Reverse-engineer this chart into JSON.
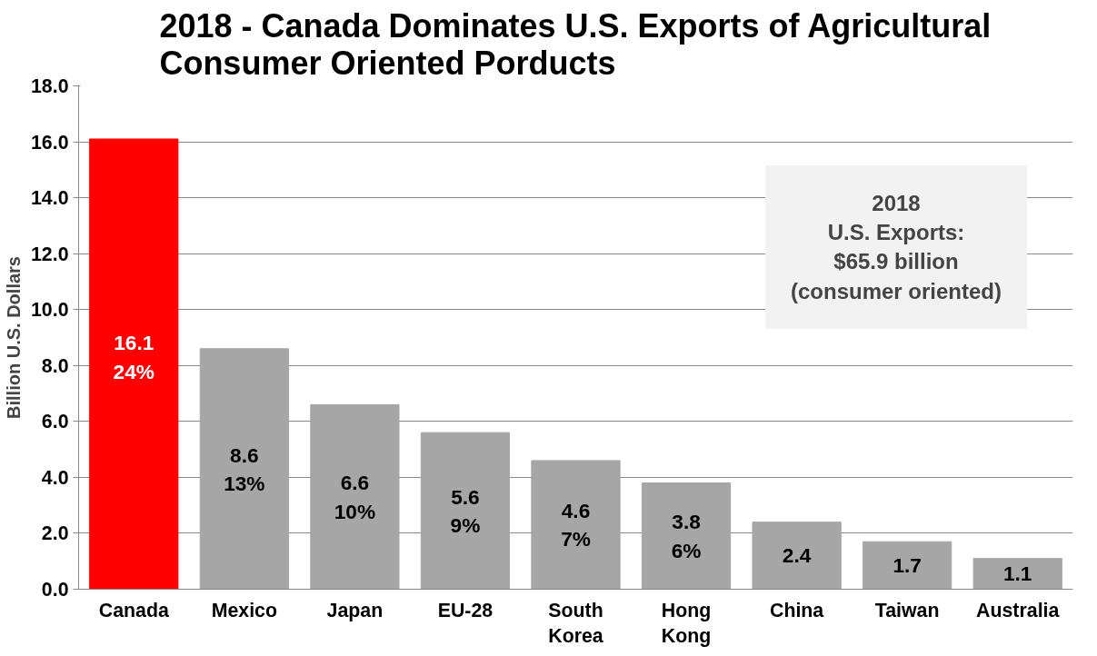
{
  "chart_data": {
    "type": "bar",
    "title": "2018 - Canada Dominates U.S. Exports of Agricultural Consumer Oriented Porducts",
    "ylabel": "Billion U.S. Dollars",
    "categories": [
      "Canada",
      "Mexico",
      "Japan",
      "EU-28",
      "South Korea",
      "Hong Kong",
      "China",
      "Taiwan",
      "Australia"
    ],
    "values": [
      16.1,
      8.6,
      6.6,
      5.6,
      4.6,
      3.8,
      2.4,
      1.7,
      1.1
    ],
    "colors": [
      "#ff0000",
      "#a6a6a6",
      "#a6a6a6",
      "#a6a6a6",
      "#a6a6a6",
      "#a6a6a6",
      "#a6a6a6",
      "#a6a6a6",
      "#a6a6a6"
    ],
    "value_labels": [
      "16.1\n24%",
      "8.6\n13%",
      "6.6\n10%",
      "5.6\n9%",
      "4.6\n7%",
      "3.8\n6%",
      "2.4",
      "1.7",
      "1.1"
    ],
    "ylim": [
      0,
      18
    ],
    "yticks": [
      {
        "value": 0,
        "label": "0.0"
      },
      {
        "value": 2,
        "label": "2.0"
      },
      {
        "value": 4,
        "label": "4.0"
      },
      {
        "value": 6,
        "label": "6.0"
      },
      {
        "value": 8,
        "label": "8.0"
      },
      {
        "value": 10,
        "label": "10.0"
      },
      {
        "value": 12,
        "label": "12.0"
      },
      {
        "value": 14,
        "label": "14.0"
      },
      {
        "value": 16,
        "label": "16.0"
      },
      {
        "value": 18,
        "label": "18.0"
      }
    ],
    "grid": "y",
    "annotations": [
      "2018\nU.S. Exports:\n$65.9 billion\n(consumer oriented)"
    ]
  }
}
